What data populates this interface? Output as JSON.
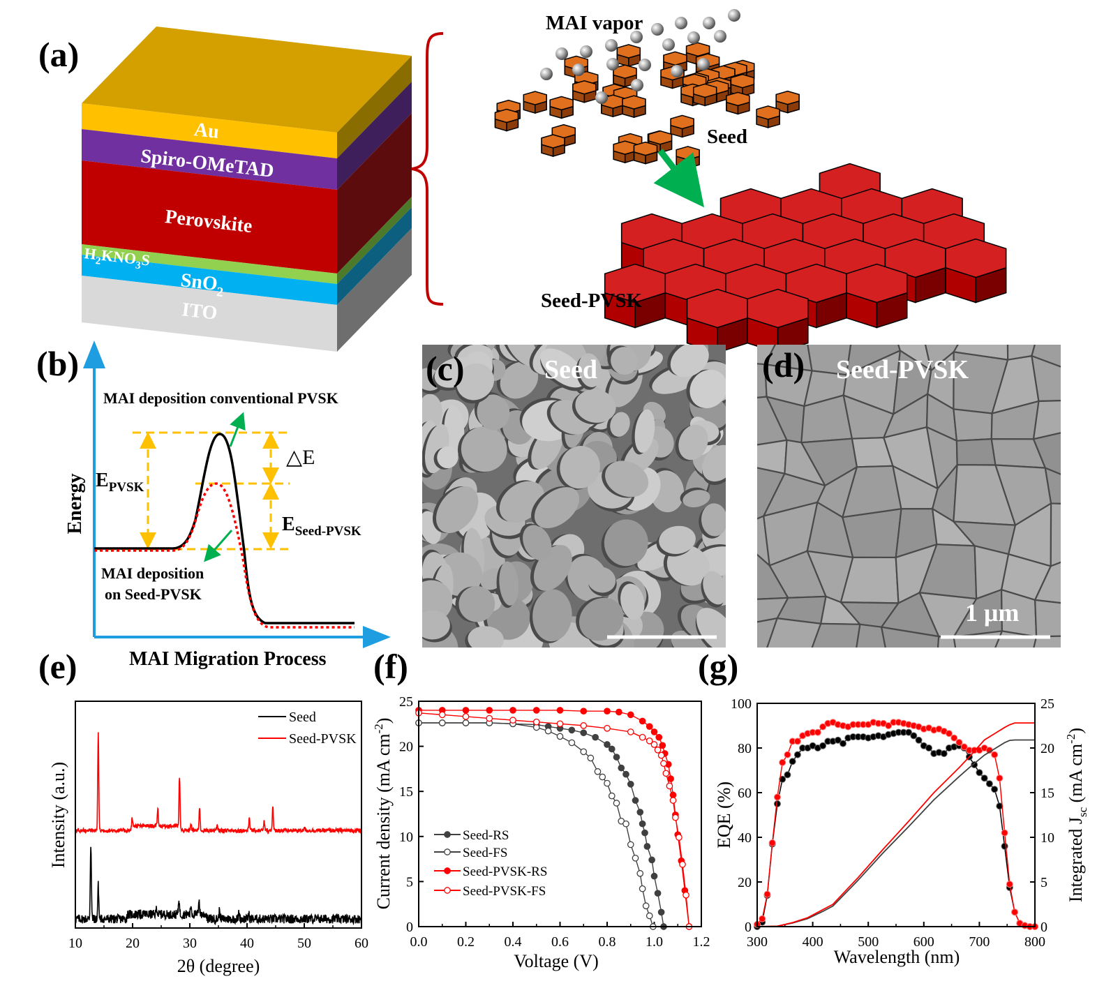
{
  "panel_labels": {
    "a": "(a)",
    "b": "(b)",
    "c": "(c)",
    "d": "(d)",
    "e": "(e)",
    "f": "(f)",
    "g": "(g)"
  },
  "panel_a": {
    "layers": [
      {
        "name": "Au",
        "front": "#ffc000",
        "side": "#8a6d00",
        "top": "#d4a000"
      },
      {
        "name": "Spiro-OMeTAD",
        "front": "#7030a0",
        "side": "#3e1f5c"
      },
      {
        "name": "Perovskite",
        "front": "#c00000",
        "side": "#5c0c0c"
      },
      {
        "name": "",
        "front": "#92d050",
        "side": "#4c7a2a"
      },
      {
        "name": "",
        "front": "#00b0f0",
        "side": "#0d5f80"
      },
      {
        "name": "ITO",
        "front": "#d9d9d9",
        "side": "#6e6e6e"
      }
    ],
    "interlayer": {
      "p1": "H",
      "s1": "2",
      "p2": "KNO",
      "s2": "3",
      "p3": "S"
    },
    "etl": {
      "p1": "SnO",
      "s1": "2"
    },
    "mai_vapor": "MAI vapor",
    "seed": "Seed",
    "seed_pvsk": "Seed-PVSK",
    "brace_color": "#c00000",
    "arrow_color": "#00b050"
  },
  "panel_b": {
    "axis_color": "#1e9ee0",
    "y_title": "Energy",
    "x_title": "MAI Migration Process",
    "conventional": "MAI deposition conventional PVSK",
    "delta_e": "△E",
    "e_pvsk": {
      "main": "E",
      "sub": "PVSK"
    },
    "e_seed": {
      "main": "E",
      "sub": "Seed-PVSK"
    },
    "on_seed_1": "MAI deposition",
    "on_seed_2": "on Seed-PVSK",
    "guide_color": "#ffc000"
  },
  "panel_c": {
    "label": "Seed"
  },
  "panel_d": {
    "label": "Seed-PVSK",
    "scale_bar": "1 μm"
  },
  "chart_data": [
    {
      "type": "line",
      "title": "",
      "xlabel": "2θ (degree)",
      "ylabel": "Intensity (a.u.)",
      "xlim": [
        10,
        60
      ],
      "xticks": [
        "10",
        "20",
        "30",
        "40",
        "50",
        "60"
      ],
      "ylim": [
        0,
        100
      ],
      "legend": "top-right",
      "series": [
        {
          "name": "Seed",
          "color": "#000000",
          "baseline": 4,
          "peaks": [
            [
              12.7,
              33
            ],
            [
              14.0,
              15
            ],
            [
              24.2,
              3
            ],
            [
              28.1,
              7
            ],
            [
              30.2,
              4
            ],
            [
              31.6,
              7
            ],
            [
              35.2,
              4
            ],
            [
              38.6,
              3
            ],
            [
              40.3,
              2
            ]
          ]
        },
        {
          "name": "Seed-PVSK",
          "color": "#ff0000",
          "baseline": 43,
          "peaks": [
            [
              14.0,
              43
            ],
            [
              19.9,
              5
            ],
            [
              24.4,
              8
            ],
            [
              28.2,
              24
            ],
            [
              30.2,
              3
            ],
            [
              31.7,
              10
            ],
            [
              34.8,
              2
            ],
            [
              40.4,
              6
            ],
            [
              43.0,
              4
            ],
            [
              44.5,
              11
            ],
            [
              50.0,
              1.5
            ]
          ]
        }
      ]
    },
    {
      "type": "scatter",
      "title": "",
      "xlabel": "Voltage (V)",
      "ylabel": {
        "p1": "Current density (mA cm",
        "sup": "-2",
        "p2": ")"
      },
      "xlim": [
        0,
        1.2
      ],
      "ylim": [
        0,
        25
      ],
      "xticks": [
        "0.0",
        "0.2",
        "0.4",
        "0.6",
        "0.8",
        "1.0",
        "1.2"
      ],
      "yticks": [
        "0",
        "5",
        "10",
        "15",
        "20",
        "25"
      ],
      "legend": "center-left",
      "series": [
        {
          "name": "Seed-RS",
          "color": "#404040",
          "marker": "filled",
          "points": [
            [
              0,
              22.6
            ],
            [
              0.1,
              22.6
            ],
            [
              0.2,
              22.6
            ],
            [
              0.3,
              22.6
            ],
            [
              0.4,
              22.5
            ],
            [
              0.5,
              22.4
            ],
            [
              0.55,
              22.2
            ],
            [
              0.6,
              22.0
            ],
            [
              0.65,
              21.8
            ],
            [
              0.7,
              21.5
            ],
            [
              0.75,
              21.0
            ],
            [
              0.8,
              20.2
            ],
            [
              0.82,
              19.7
            ],
            [
              0.84,
              18.8
            ],
            [
              0.86,
              17.6
            ],
            [
              0.88,
              16.9
            ],
            [
              0.9,
              15.8
            ],
            [
              0.92,
              14.0
            ],
            [
              0.94,
              12.7
            ],
            [
              0.95,
              11.4
            ],
            [
              0.96,
              10.4
            ],
            [
              0.97,
              8.9
            ],
            [
              0.99,
              7.4
            ],
            [
              1.0,
              5.6
            ],
            [
              1.015,
              3.7
            ],
            [
              1.03,
              1.6
            ],
            [
              1.04,
              0
            ]
          ]
        },
        {
          "name": "Seed-FS",
          "color": "#404040",
          "marker": "open",
          "points": [
            [
              0,
              22.6
            ],
            [
              0.1,
              22.6
            ],
            [
              0.2,
              22.6
            ],
            [
              0.3,
              22.6
            ],
            [
              0.4,
              22.5
            ],
            [
              0.5,
              22.1
            ],
            [
              0.55,
              21.7
            ],
            [
              0.6,
              21.1
            ],
            [
              0.65,
              20.4
            ],
            [
              0.7,
              19.4
            ],
            [
              0.73,
              18.7
            ],
            [
              0.76,
              17.2
            ],
            [
              0.78,
              16.6
            ],
            [
              0.8,
              15.9
            ],
            [
              0.82,
              14.5
            ],
            [
              0.84,
              13.7
            ],
            [
              0.86,
              11.7
            ],
            [
              0.88,
              11.4
            ],
            [
              0.9,
              9.1
            ],
            [
              0.92,
              7.6
            ],
            [
              0.94,
              5.9
            ],
            [
              0.95,
              4.2
            ],
            [
              0.965,
              2.3
            ],
            [
              0.98,
              1.2
            ],
            [
              0.995,
              0
            ]
          ]
        },
        {
          "name": "Seed-PVSK-RS",
          "color": "#ff0000",
          "marker": "filled",
          "points": [
            [
              0,
              24.0
            ],
            [
              0.1,
              24.0
            ],
            [
              0.2,
              24.0
            ],
            [
              0.3,
              24.0
            ],
            [
              0.4,
              24.0
            ],
            [
              0.5,
              24.0
            ],
            [
              0.6,
              24.0
            ],
            [
              0.7,
              23.9
            ],
            [
              0.8,
              23.9
            ],
            [
              0.85,
              23.8
            ],
            [
              0.9,
              23.5
            ],
            [
              0.95,
              22.8
            ],
            [
              0.98,
              22.2
            ],
            [
              1.0,
              21.6
            ],
            [
              1.02,
              21.0
            ],
            [
              1.035,
              20.1
            ],
            [
              1.045,
              19.2
            ],
            [
              1.06,
              18.0
            ],
            [
              1.07,
              16.4
            ],
            [
              1.08,
              14.6
            ],
            [
              1.09,
              12.4
            ],
            [
              1.1,
              10.2
            ],
            [
              1.115,
              7.3
            ],
            [
              1.13,
              4.0
            ],
            [
              1.148,
              0
            ]
          ]
        },
        {
          "name": "Seed-PVSK-FS",
          "color": "#ff0000",
          "marker": "open",
          "points": [
            [
              0,
              23.7
            ],
            [
              0.1,
              23.5
            ],
            [
              0.2,
              23.3
            ],
            [
              0.3,
              23.1
            ],
            [
              0.4,
              22.9
            ],
            [
              0.5,
              22.7
            ],
            [
              0.6,
              22.5
            ],
            [
              0.7,
              22.3
            ],
            [
              0.8,
              22.0
            ],
            [
              0.9,
              21.6
            ],
            [
              0.95,
              21.0
            ],
            [
              0.98,
              20.6
            ],
            [
              1.0,
              20.2
            ],
            [
              1.015,
              19.6
            ],
            [
              1.03,
              19.0
            ],
            [
              1.04,
              18.1
            ],
            [
              1.05,
              17.0
            ],
            [
              1.065,
              15.6
            ],
            [
              1.08,
              14.0
            ],
            [
              1.09,
              12.1
            ],
            [
              1.105,
              9.9
            ],
            [
              1.12,
              6.9
            ],
            [
              1.135,
              3.5
            ],
            [
              1.148,
              0
            ]
          ]
        }
      ]
    },
    {
      "type": "line",
      "title": "",
      "xlabel": "Wavelength (nm)",
      "ylabel": "EQE (%)",
      "ylabel_right": {
        "p1": "Integrated J",
        "sub": "sc",
        "p2": " (mA cm",
        "sup": "-2",
        "p3": ")"
      },
      "xlim": [
        300,
        850
      ],
      "ylim": [
        0,
        100
      ],
      "ylim_right": [
        0,
        25
      ],
      "xticks": [
        "300",
        "400",
        "500",
        "600",
        "700",
        "800"
      ],
      "yticks": [
        "0",
        "20",
        "40",
        "60",
        "80",
        "100"
      ],
      "yticks_right": [
        "0",
        "5",
        "10",
        "15",
        "20",
        "25"
      ],
      "wavelengths": [
        300,
        310,
        320,
        330,
        340,
        350,
        360,
        370,
        380,
        390,
        400,
        410,
        420,
        430,
        440,
        450,
        460,
        470,
        480,
        490,
        500,
        510,
        520,
        530,
        540,
        550,
        560,
        570,
        580,
        590,
        600,
        610,
        620,
        630,
        640,
        650,
        660,
        670,
        680,
        690,
        700,
        710,
        720,
        730,
        740,
        750,
        760,
        770,
        780,
        790,
        800,
        810,
        820,
        830,
        840,
        850
      ],
      "series": [
        {
          "color": "#000000",
          "axis": "left",
          "marker": "filled",
          "values": [
            0,
            2,
            14,
            37,
            55,
            66,
            68,
            74,
            77,
            80,
            80,
            81,
            80,
            81,
            83,
            83,
            83.5,
            82,
            84.5,
            85,
            85,
            85,
            84.5,
            85,
            85.5,
            85,
            86,
            86.5,
            87,
            87,
            87,
            85.5,
            83.5,
            81,
            80,
            77.5,
            78,
            77.5,
            80,
            80.5,
            81,
            80,
            76,
            72.5,
            69,
            66.5,
            64,
            61.5,
            54,
            36,
            17.5,
            6.5,
            1.5,
            0.5,
            0,
            0
          ]
        },
        {
          "color": "#ff0000",
          "axis": "left",
          "marker": "filled",
          "values": [
            1,
            3.5,
            14.5,
            37.5,
            58,
            73.5,
            77,
            83,
            83,
            85.5,
            86.5,
            87,
            87,
            89.5,
            91,
            91.5,
            90.5,
            90,
            89.5,
            90.5,
            90.5,
            90.5,
            90.5,
            91.5,
            91,
            91,
            90,
            91.5,
            91.5,
            91,
            90.5,
            90,
            89.5,
            88.5,
            89,
            88,
            88.5,
            87.5,
            86.5,
            84.5,
            82.5,
            80.5,
            79,
            79,
            79,
            80,
            79,
            77,
            66.5,
            42,
            19,
            6.5,
            1.5,
            0.5,
            0,
            0
          ]
        },
        {
          "color": "#404040",
          "axis": "right",
          "x": [
            300,
            340,
            370,
            400,
            430,
            450,
            500,
            550,
            600,
            650,
            700,
            720,
            750,
            770,
            790,
            800,
            810,
            850
          ],
          "values": [
            0,
            0.05,
            0.4,
            0.9,
            1.7,
            2.3,
            5.2,
            8.3,
            11.2,
            14.2,
            16.8,
            17.8,
            19.2,
            19.9,
            20.6,
            20.85,
            20.9,
            20.9
          ]
        },
        {
          "color": "#ff0000",
          "axis": "right",
          "x": [
            300,
            340,
            370,
            400,
            430,
            450,
            500,
            550,
            600,
            650,
            700,
            720,
            750,
            770,
            790,
            800,
            810,
            850
          ],
          "values": [
            0,
            0.05,
            0.45,
            1.0,
            1.9,
            2.5,
            5.5,
            8.7,
            11.8,
            15.0,
            17.8,
            19.0,
            20.9,
            21.6,
            22.3,
            22.6,
            22.8,
            22.8
          ]
        }
      ]
    }
  ]
}
